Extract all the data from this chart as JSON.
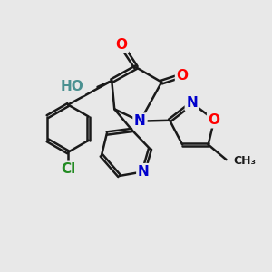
{
  "bg_color": "#e8e8e8",
  "bond_color": "#1a1a1a",
  "bond_width": 1.8,
  "atom_colors": {
    "O": "#ff0000",
    "N": "#0000cc",
    "Cl": "#228B22",
    "H": "#4a9090",
    "C": "#1a1a1a"
  },
  "font_size_atom": 11,
  "font_size_small": 9
}
